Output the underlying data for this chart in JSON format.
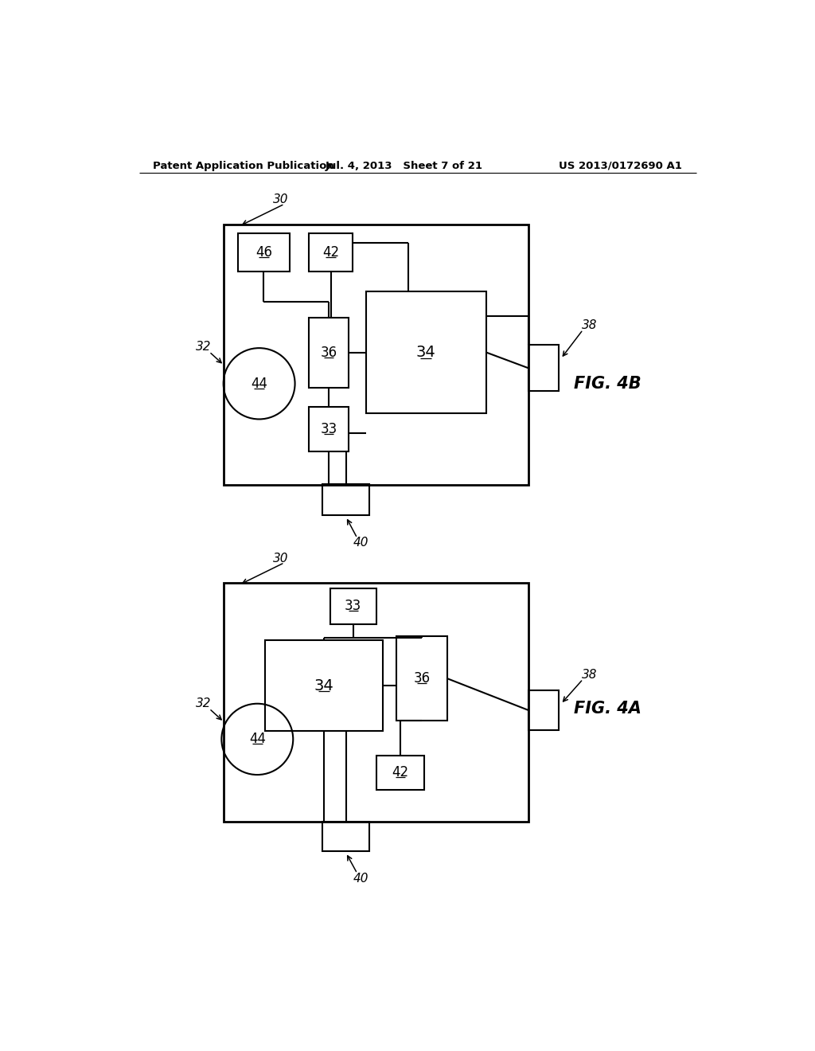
{
  "bg_color": "#ffffff",
  "header_left": "Patent Application Publication",
  "header_mid": "Jul. 4, 2013   Sheet 7 of 21",
  "header_right": "US 2013/0172690 A1",
  "fig4b_label": "FIG. 4B",
  "fig4a_label": "FIG. 4A",
  "line_color": "#000000",
  "line_width": 1.5
}
